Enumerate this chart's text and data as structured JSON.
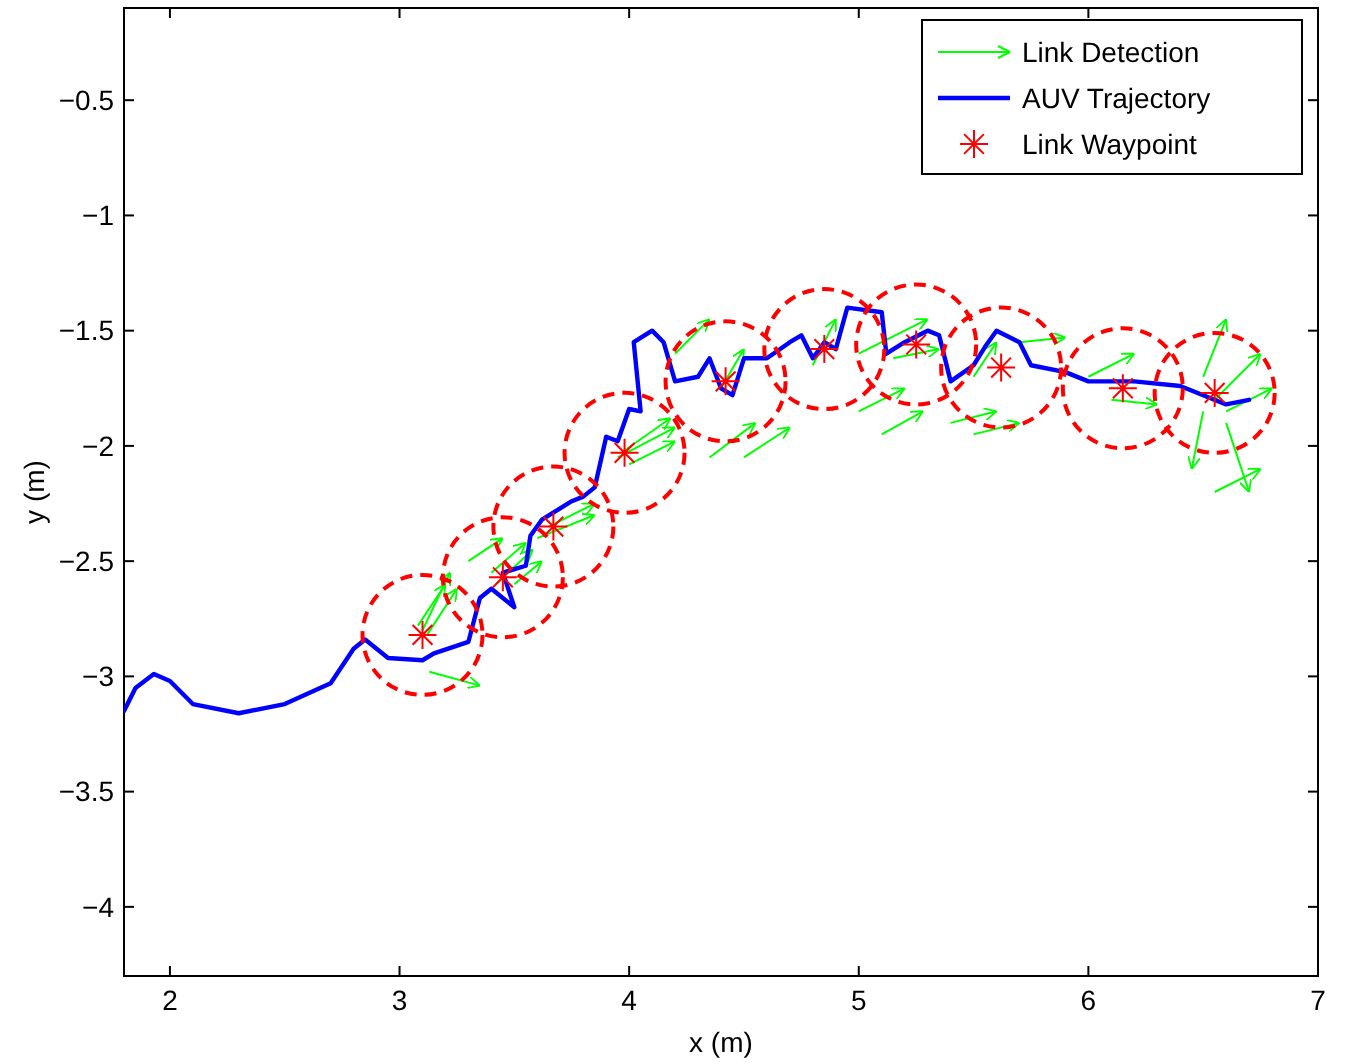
{
  "chart_data": {
    "type": "line",
    "xlabel": "x (m)",
    "ylabel": "y (m)",
    "xlim": [
      1.8,
      7
    ],
    "xticks": [
      2,
      3,
      4,
      5,
      6,
      7
    ],
    "ylim": [
      -4.3,
      -0.1
    ],
    "yticks": [
      -4,
      -3.5,
      -3,
      -2.5,
      -2,
      -1.5,
      -1,
      -0.5
    ],
    "grid": false,
    "legend": "top right",
    "series": [
      {
        "name": "Link Detection",
        "color": "#00ff00",
        "x": [
          3.1,
          3.22
        ],
        "values": [
          -2.8,
          -2.55
        ]
      },
      {
        "color": "#00ff00",
        "x": [
          3.08,
          3.2
        ],
        "values": [
          -2.78,
          -2.6
        ]
      },
      {
        "color": "#00ff00",
        "x": [
          3.12,
          3.25
        ],
        "values": [
          -2.82,
          -2.62
        ]
      },
      {
        "color": "#00ff00",
        "x": [
          3.13,
          3.35
        ],
        "values": [
          -2.98,
          -3.04
        ]
      },
      {
        "color": "#00ff00",
        "x": [
          3.4,
          3.55
        ],
        "values": [
          -2.55,
          -2.42
        ]
      },
      {
        "color": "#00ff00",
        "x": [
          3.42,
          3.58
        ],
        "values": [
          -2.6,
          -2.45
        ]
      },
      {
        "color": "#00ff00",
        "x": [
          3.3,
          3.45
        ],
        "values": [
          -2.5,
          -2.4
        ]
      },
      {
        "color": "#00ff00",
        "x": [
          3.5,
          3.62
        ],
        "values": [
          -2.6,
          -2.5
        ]
      },
      {
        "color": "#00ff00",
        "x": [
          3.6,
          3.85
        ],
        "values": [
          -2.4,
          -2.3
        ]
      },
      {
        "color": "#00ff00",
        "x": [
          3.65,
          3.85
        ],
        "values": [
          -2.35,
          -2.25
        ]
      },
      {
        "color": "#00ff00",
        "x": [
          3.95,
          4.2
        ],
        "values": [
          -2.05,
          -1.92
        ]
      },
      {
        "color": "#00ff00",
        "x": [
          3.98,
          4.18
        ],
        "values": [
          -2.02,
          -1.88
        ]
      },
      {
        "color": "#00ff00",
        "x": [
          4.0,
          4.2
        ],
        "values": [
          -2.08,
          -1.98
        ]
      },
      {
        "color": "#00ff00",
        "x": [
          4.4,
          4.5
        ],
        "values": [
          -1.75,
          -1.58
        ]
      },
      {
        "color": "#00ff00",
        "x": [
          4.2,
          4.35
        ],
        "values": [
          -1.6,
          -1.45
        ]
      },
      {
        "color": "#00ff00",
        "x": [
          4.35,
          4.55
        ],
        "values": [
          -2.05,
          -1.9
        ]
      },
      {
        "color": "#00ff00",
        "x": [
          4.8,
          4.9
        ],
        "values": [
          -1.65,
          -1.45
        ]
      },
      {
        "color": "#00ff00",
        "x": [
          4.5,
          4.7
        ],
        "values": [
          -2.05,
          -1.92
        ]
      },
      {
        "color": "#00ff00",
        "x": [
          5.0,
          5.3
        ],
        "values": [
          -1.6,
          -1.45
        ]
      },
      {
        "color": "#00ff00",
        "x": [
          5.15,
          5.35
        ],
        "values": [
          -1.62,
          -1.58
        ]
      },
      {
        "color": "#00ff00",
        "x": [
          5.0,
          5.2
        ],
        "values": [
          -1.85,
          -1.75
        ]
      },
      {
        "color": "#00ff00",
        "x": [
          5.1,
          5.28
        ],
        "values": [
          -1.95,
          -1.85
        ]
      },
      {
        "color": "#00ff00",
        "x": [
          5.5,
          5.6
        ],
        "values": [
          -1.7,
          -1.55
        ]
      },
      {
        "color": "#00ff00",
        "x": [
          5.4,
          5.6
        ],
        "values": [
          -1.9,
          -1.85
        ]
      },
      {
        "color": "#00ff00",
        "x": [
          5.5,
          5.7
        ],
        "values": [
          -1.95,
          -1.9
        ]
      },
      {
        "color": "#00ff00",
        "x": [
          5.7,
          5.9
        ],
        "values": [
          -1.55,
          -1.53
        ]
      },
      {
        "color": "#00ff00",
        "x": [
          6.0,
          6.2
        ],
        "values": [
          -1.7,
          -1.6
        ]
      },
      {
        "color": "#00ff00",
        "x": [
          6.1,
          6.3
        ],
        "values": [
          -1.8,
          -1.82
        ]
      },
      {
        "color": "#00ff00",
        "x": [
          6.5,
          6.6
        ],
        "values": [
          -1.7,
          -1.45
        ]
      },
      {
        "color": "#00ff00",
        "x": [
          6.55,
          6.75
        ],
        "values": [
          -1.8,
          -1.6
        ]
      },
      {
        "color": "#00ff00",
        "x": [
          6.6,
          6.8
        ],
        "values": [
          -1.85,
          -1.75
        ]
      },
      {
        "color": "#00ff00",
        "x": [
          6.5,
          6.45
        ],
        "values": [
          -1.85,
          -2.1
        ]
      },
      {
        "color": "#00ff00",
        "x": [
          6.6,
          6.7
        ],
        "values": [
          -1.9,
          -2.2
        ]
      },
      {
        "color": "#00ff00",
        "x": [
          6.55,
          6.75
        ],
        "values": [
          -2.2,
          -2.1
        ]
      },
      {
        "name": "AUV Trajectory",
        "marker": "none",
        "color": "#0000ff",
        "x": [
          1.8,
          1.85,
          1.93,
          2.0,
          2.1,
          2.3,
          2.5,
          2.7,
          2.8,
          2.85,
          2.95,
          3.1,
          3.15,
          3.3,
          3.35,
          3.4,
          3.5,
          3.45,
          3.55,
          3.57,
          3.62,
          3.75,
          3.8,
          3.85,
          3.9,
          3.95,
          4.0,
          4.05,
          4.02,
          4.1,
          4.15,
          4.2,
          4.3,
          4.35,
          4.4,
          4.45,
          4.5,
          4.6,
          4.7,
          4.75,
          4.8,
          4.85,
          4.9,
          4.95,
          5.1,
          5.12,
          5.2,
          5.3,
          5.35,
          5.4,
          5.5,
          5.55,
          5.6,
          5.7,
          5.75,
          5.9,
          6.0,
          6.2,
          6.4,
          6.5,
          6.6,
          6.7
        ],
        "values": [
          -3.15,
          -3.05,
          -2.99,
          -3.02,
          -3.12,
          -3.16,
          -3.12,
          -3.03,
          -2.88,
          -2.84,
          -2.92,
          -2.93,
          -2.9,
          -2.85,
          -2.66,
          -2.62,
          -2.7,
          -2.55,
          -2.52,
          -2.39,
          -2.32,
          -2.24,
          -2.22,
          -2.18,
          -1.96,
          -1.98,
          -1.84,
          -1.85,
          -1.55,
          -1.5,
          -1.55,
          -1.72,
          -1.7,
          -1.62,
          -1.75,
          -1.78,
          -1.62,
          -1.62,
          -1.55,
          -1.52,
          -1.62,
          -1.55,
          -1.58,
          -1.4,
          -1.42,
          -1.6,
          -1.55,
          -1.5,
          -1.52,
          -1.72,
          -1.65,
          -1.57,
          -1.5,
          -1.55,
          -1.65,
          -1.68,
          -1.72,
          -1.72,
          -1.74,
          -1.78,
          -1.82,
          -1.8
        ]
      },
      {
        "name": "Link Waypoint",
        "type": "scatter",
        "marker": "cross",
        "color": "#ff0000",
        "x": [
          3.1,
          3.45,
          3.67,
          3.98,
          4.42,
          4.85,
          5.25,
          5.62,
          6.15,
          6.55
        ],
        "values": [
          -2.82,
          -2.57,
          -2.35,
          -2.03,
          -1.72,
          -1.58,
          -1.56,
          -1.66,
          -1.75,
          -1.77
        ]
      },
      {
        "type": "bubble",
        "line_style": "dashed",
        "color": "#ff0000",
        "x": [
          3.1,
          3.45,
          3.67,
          3.98,
          4.42,
          4.85,
          5.25,
          5.62,
          6.15,
          6.55
        ],
        "values": [
          -2.82,
          -2.57,
          -2.35,
          -2.03,
          -1.72,
          -1.58,
          -1.56,
          -1.66,
          -1.75,
          -1.77
        ],
        "sizes": [
          1,
          1,
          1,
          1,
          1,
          1,
          1,
          1,
          1,
          1
        ]
      }
    ]
  }
}
